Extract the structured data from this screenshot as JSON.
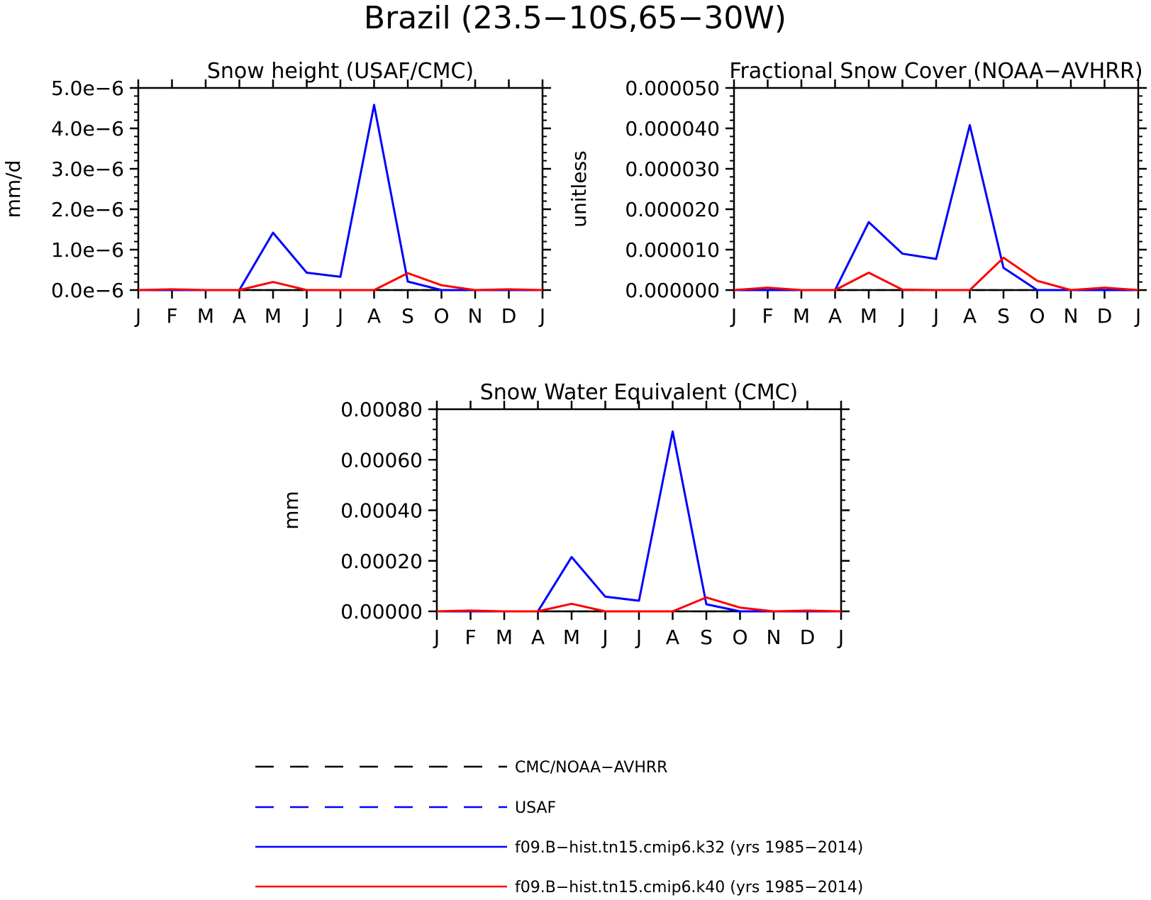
{
  "figure": {
    "title": "Brazil (23.5−10S,65−30W)"
  },
  "colors": {
    "axis": "#000000",
    "obs_black": "#000000",
    "obs_blue": "#0000ff",
    "model_k32": "#0000ff",
    "model_k40": "#ff0000"
  },
  "legend": [
    {
      "label": "CMC/NOAA−AVHRR",
      "color": "#000000",
      "style": "dashed"
    },
    {
      "label": "USAF",
      "color": "#0000ff",
      "style": "dashed"
    },
    {
      "label": "f09.B−hist.tn15.cmip6.k32 (yrs 1985−2014)",
      "color": "#0000ff",
      "style": "solid"
    },
    {
      "label": "f09.B−hist.tn15.cmip6.k40 (yrs 1985−2014)",
      "color": "#ff0000",
      "style": "solid"
    }
  ],
  "chart_data": [
    {
      "type": "line",
      "title": "Snow height (USAF/CMC)",
      "xlabel": "",
      "ylabel": "mm/d",
      "categories": [
        "J",
        "F",
        "M",
        "A",
        "M",
        "J",
        "J",
        "A",
        "S",
        "O",
        "N",
        "D",
        "J"
      ],
      "ylim": [
        0,
        5e-06
      ],
      "yticks": [
        0,
        1e-06,
        2e-06,
        3e-06,
        4e-06,
        5e-06
      ],
      "ytick_labels": [
        "0.0e−6",
        "1.0e−6",
        "2.0e−6",
        "3.0e−6",
        "4.0e−6",
        "5.0e−6"
      ],
      "series": [
        {
          "name": "f09.B−hist.tn15.cmip6.k32 (yrs 1985−2014)",
          "color": "#0000ff",
          "values": [
            0,
            0,
            0,
            0,
            1.42e-06,
            4.3e-07,
            3.3e-07,
            4.58e-06,
            2.1e-07,
            0,
            0,
            0,
            0
          ]
        },
        {
          "name": "f09.B−hist.tn15.cmip6.k40 (yrs 1985−2014)",
          "color": "#ff0000",
          "values": [
            0,
            2e-08,
            0,
            0,
            2e-07,
            0,
            0,
            0,
            4.2e-07,
            1.2e-07,
            0,
            2e-08,
            0
          ]
        }
      ]
    },
    {
      "type": "line",
      "title": "Fractional Snow Cover (NOAA−AVHRR)",
      "xlabel": "",
      "ylabel": "unitless",
      "categories": [
        "J",
        "F",
        "M",
        "A",
        "M",
        "J",
        "J",
        "A",
        "S",
        "O",
        "N",
        "D",
        "J"
      ],
      "ylim": [
        0,
        5e-05
      ],
      "yticks": [
        0,
        1e-05,
        2e-05,
        3e-05,
        4e-05,
        5e-05
      ],
      "ytick_labels": [
        "0.000000",
        "0.000010",
        "0.000020",
        "0.000030",
        "0.000040",
        "0.000050"
      ],
      "series": [
        {
          "name": "f09.B−hist.tn15.cmip6.k32 (yrs 1985−2014)",
          "color": "#0000ff",
          "values": [
            0,
            0,
            0,
            0,
            1.68e-05,
            9e-06,
            7.7e-06,
            4.08e-05,
            5.5e-06,
            0,
            0,
            0,
            0
          ]
        },
        {
          "name": "f09.B−hist.tn15.cmip6.k40 (yrs 1985−2014)",
          "color": "#ff0000",
          "values": [
            0,
            6e-07,
            0,
            0,
            4.3e-06,
            1e-07,
            0,
            0,
            8e-06,
            2.3e-06,
            0,
            6e-07,
            0
          ]
        }
      ]
    },
    {
      "type": "line",
      "title": "Snow Water Equivalent (CMC)",
      "xlabel": "",
      "ylabel": "mm",
      "categories": [
        "J",
        "F",
        "M",
        "A",
        "M",
        "J",
        "J",
        "A",
        "S",
        "O",
        "N",
        "D",
        "J"
      ],
      "ylim": [
        0,
        0.0008
      ],
      "yticks": [
        0,
        0.0002,
        0.0004,
        0.0006,
        0.0008
      ],
      "ytick_labels": [
        "0.00000",
        "0.00020",
        "0.00040",
        "0.00060",
        "0.00080"
      ],
      "series": [
        {
          "name": "f09.B−hist.tn15.cmip6.k32 (yrs 1985−2014)",
          "color": "#0000ff",
          "values": [
            0,
            0,
            0,
            0,
            0.000215,
            5.8e-05,
            4.2e-05,
            0.000712,
            2.8e-05,
            0,
            0,
            0,
            0
          ]
        },
        {
          "name": "f09.B−hist.tn15.cmip6.k40 (yrs 1985−2014)",
          "color": "#ff0000",
          "values": [
            0,
            3e-06,
            0,
            0,
            3e-05,
            0,
            0,
            0,
            5.5e-05,
            1.5e-05,
            0,
            3e-06,
            0
          ]
        }
      ]
    }
  ]
}
